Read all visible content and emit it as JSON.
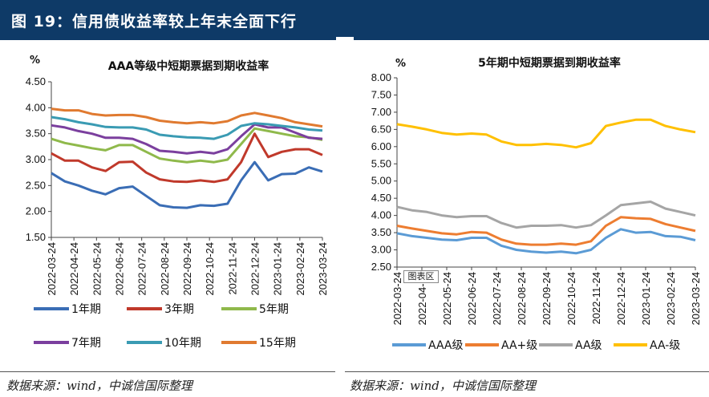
{
  "page_title": "图 19：信用债收益率较上年末全面下行",
  "charts": [
    {
      "title": "AAA等级中短期票据到期收益率",
      "y_unit": "%",
      "source": "数据来源：wind，中诚信国际整理"
    },
    {
      "title": "5年期中短期票据到期收益率",
      "y_unit": "%",
      "source": "数据来源：wind，中诚信国际整理",
      "callout": "图表区"
    }
  ],
  "chart_data": [
    {
      "type": "line",
      "title": "AAA等级中短期票据到期收益率",
      "ylabel": "%",
      "ylim": [
        1.5,
        4.5
      ],
      "yticks": [
        "1.50",
        "2.00",
        "2.50",
        "3.00",
        "3.50",
        "4.00",
        "4.50"
      ],
      "x_ticks": [
        "2022-03-24",
        "2022-04-24",
        "2022-05-24",
        "2022-06-24",
        "2022-07-24",
        "2022-08-24",
        "2022-09-24",
        "2022-10-24",
        "2022-11-24",
        "2022-12-24",
        "2023-01-24",
        "2023-02-24",
        "2023-03-24"
      ],
      "legend_position": "bottom",
      "series": [
        {
          "name": "1年期",
          "color": "#3a6db5",
          "values": [
            2.74,
            2.58,
            2.5,
            2.4,
            2.33,
            2.45,
            2.48,
            2.3,
            2.12,
            2.08,
            2.07,
            2.12,
            2.11,
            2.15,
            2.6,
            2.95,
            2.6,
            2.72,
            2.73,
            2.85,
            2.77
          ]
        },
        {
          "name": "3年期",
          "color": "#c0392b",
          "values": [
            3.12,
            2.98,
            2.98,
            2.85,
            2.78,
            2.95,
            2.96,
            2.75,
            2.62,
            2.58,
            2.57,
            2.6,
            2.57,
            2.62,
            2.95,
            3.5,
            3.05,
            3.15,
            3.2,
            3.2,
            3.09
          ]
        },
        {
          "name": "5年期",
          "color": "#8fb94b",
          "values": [
            3.4,
            3.32,
            3.27,
            3.22,
            3.18,
            3.28,
            3.28,
            3.15,
            3.02,
            2.98,
            2.95,
            2.98,
            2.95,
            3.0,
            3.3,
            3.6,
            3.55,
            3.5,
            3.45,
            3.43,
            3.38
          ]
        },
        {
          "name": "7年期",
          "color": "#7b3f9e",
          "values": [
            3.66,
            3.62,
            3.55,
            3.5,
            3.42,
            3.42,
            3.4,
            3.3,
            3.17,
            3.15,
            3.12,
            3.15,
            3.12,
            3.2,
            3.45,
            3.68,
            3.62,
            3.62,
            3.52,
            3.42,
            3.4
          ]
        },
        {
          "name": "10年期",
          "color": "#3a9bb3",
          "values": [
            3.82,
            3.78,
            3.72,
            3.68,
            3.63,
            3.62,
            3.62,
            3.58,
            3.48,
            3.45,
            3.43,
            3.42,
            3.4,
            3.48,
            3.65,
            3.7,
            3.68,
            3.65,
            3.62,
            3.58,
            3.56
          ]
        },
        {
          "name": "15年期",
          "color": "#e07a30",
          "values": [
            3.98,
            3.95,
            3.95,
            3.88,
            3.85,
            3.86,
            3.86,
            3.82,
            3.75,
            3.72,
            3.7,
            3.72,
            3.7,
            3.74,
            3.85,
            3.9,
            3.85,
            3.8,
            3.72,
            3.68,
            3.64
          ]
        }
      ]
    },
    {
      "type": "line",
      "title": "5年期中短期票据到期收益率",
      "ylabel": "%",
      "ylim": [
        2.5,
        8.0
      ],
      "yticks": [
        "2.50",
        "3.00",
        "3.50",
        "4.00",
        "4.50",
        "5.00",
        "5.50",
        "6.00",
        "6.50",
        "7.00",
        "7.50",
        "8.00"
      ],
      "x_ticks": [
        "2022-03-24",
        "2022-04-24",
        "2022-05-24",
        "2022-06-24",
        "2022-07-24",
        "2022-08-24",
        "2022-09-24",
        "2022-10-24",
        "2022-11-24",
        "2022-12-24",
        "2023-01-24",
        "2023-02-24",
        "2023-03-24"
      ],
      "legend_position": "bottom",
      "series": [
        {
          "name": "AAA级",
          "color": "#5b9bd5",
          "values": [
            3.48,
            3.4,
            3.35,
            3.3,
            3.28,
            3.35,
            3.35,
            3.12,
            3.0,
            2.95,
            2.92,
            2.95,
            2.9,
            3.0,
            3.35,
            3.6,
            3.5,
            3.52,
            3.4,
            3.38,
            3.28
          ]
        },
        {
          "name": "AA+级",
          "color": "#ed7d31",
          "values": [
            3.7,
            3.62,
            3.55,
            3.48,
            3.45,
            3.52,
            3.5,
            3.3,
            3.18,
            3.15,
            3.15,
            3.18,
            3.15,
            3.25,
            3.7,
            3.95,
            3.92,
            3.9,
            3.75,
            3.65,
            3.55
          ]
        },
        {
          "name": "AA级",
          "color": "#a5a5a5",
          "values": [
            4.25,
            4.15,
            4.1,
            4.0,
            3.95,
            3.98,
            3.98,
            3.78,
            3.65,
            3.7,
            3.7,
            3.72,
            3.65,
            3.72,
            4.0,
            4.3,
            4.35,
            4.4,
            4.2,
            4.1,
            4.0
          ]
        },
        {
          "name": "AA-级",
          "color": "#ffc000",
          "values": [
            6.65,
            6.58,
            6.5,
            6.4,
            6.35,
            6.38,
            6.35,
            6.15,
            6.05,
            6.05,
            6.08,
            6.05,
            5.98,
            6.1,
            6.6,
            6.7,
            6.78,
            6.78,
            6.6,
            6.5,
            6.42
          ]
        }
      ]
    }
  ]
}
